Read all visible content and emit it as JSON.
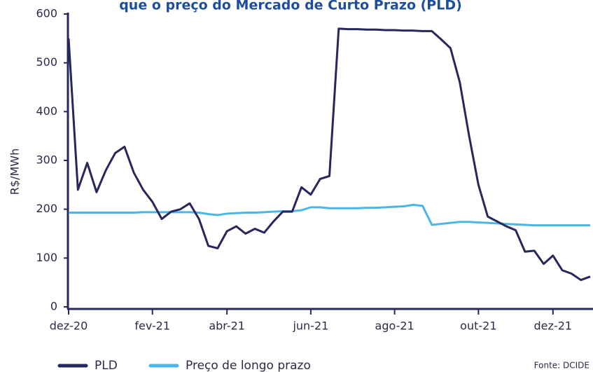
{
  "chart_data": {
    "type": "line",
    "title": "que o preço do Mercado de Curto Prazo (PLD)",
    "y_label": "R$/MWh",
    "source": "Fonte: DCIDE",
    "categories": [
      "dez-20",
      null,
      null,
      null,
      null,
      null,
      null,
      null,
      null,
      "fev-21",
      null,
      null,
      null,
      null,
      null,
      null,
      null,
      "abr-21",
      null,
      null,
      null,
      null,
      null,
      null,
      null,
      null,
      "jun-21",
      null,
      null,
      null,
      null,
      null,
      null,
      null,
      null,
      "ago-21",
      null,
      null,
      null,
      null,
      null,
      null,
      null,
      null,
      "out-21",
      null,
      null,
      null,
      null,
      null,
      null,
      null,
      "dez-21",
      null,
      null,
      null,
      null
    ],
    "series": [
      {
        "name": "PLD",
        "color": "#27275c",
        "values": [
          550,
          240,
          295,
          235,
          280,
          315,
          328,
          275,
          240,
          215,
          180,
          195,
          200,
          212,
          180,
          125,
          120,
          155,
          165,
          150,
          160,
          152,
          175,
          195,
          195,
          245,
          230,
          262,
          268,
          570,
          569,
          569,
          568,
          568,
          567,
          567,
          566,
          566,
          565,
          565,
          548,
          530,
          460,
          350,
          250,
          185,
          175,
          165,
          157,
          113,
          115,
          88,
          105,
          75,
          68,
          55,
          62
        ]
      },
      {
        "name": "Preço de longo prazo",
        "color": "#4bb6e6",
        "values": [
          193,
          193,
          193,
          193,
          193,
          193,
          193,
          193,
          194,
          194,
          194,
          194,
          194,
          194,
          193,
          190,
          188,
          191,
          192,
          193,
          193,
          194,
          195,
          196,
          196,
          198,
          204,
          204,
          202,
          202,
          202,
          202,
          203,
          203,
          204,
          205,
          206,
          209,
          207,
          168,
          170,
          172,
          174,
          174,
          173,
          172,
          171,
          170,
          169,
          168,
          167,
          167,
          167,
          167,
          167,
          167,
          167
        ]
      }
    ],
    "ylim": [
      0,
      600
    ],
    "yticks": [
      0,
      100,
      200,
      300,
      400,
      500,
      600
    ],
    "grid": false
  }
}
